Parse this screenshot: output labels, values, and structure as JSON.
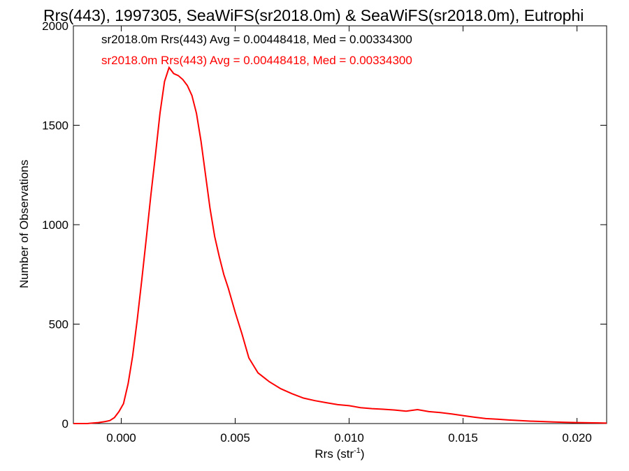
{
  "chart_data": {
    "type": "line",
    "title": "Rrs(443), 1997305, SeaWiFS(sr2018.0m) & SeaWiFS(sr2018.0m), Eutrophi",
    "xlabel": "Rrs (str",
    "xlabel_sup": "-1",
    "xlabel_end": ")",
    "ylabel": "Number of Observations",
    "xlim": [
      -0.0021,
      0.0213
    ],
    "ylim": [
      0,
      2000
    ],
    "x_ticks": [
      0.0,
      0.005,
      0.01,
      0.015,
      0.02
    ],
    "x_tick_labels": [
      "0.000",
      "0.005",
      "0.010",
      "0.015",
      "0.020"
    ],
    "y_ticks": [
      0,
      500,
      1000,
      1500,
      2000
    ],
    "y_tick_labels": [
      "0",
      "500",
      "1000",
      "1500",
      "2000"
    ],
    "grid": false,
    "annotations": [
      {
        "text": "sr2018.0m Rrs(443) Avg = 0.00448418, Med = 0.00334300",
        "color": "#000000"
      },
      {
        "text": "sr2018.0m Rrs(443) Avg = 0.00448418, Med = 0.00334300",
        "color": "#ff0000"
      }
    ],
    "series": [
      {
        "color": "#ff0000",
        "x": [
          -0.0021,
          -0.0015,
          -0.001,
          -0.0007,
          -0.0005,
          -0.0003,
          -0.0001,
          0.0001,
          0.0003,
          0.0005,
          0.0007,
          0.0009,
          0.0011,
          0.0013,
          0.0015,
          0.0017,
          0.0019,
          0.0021,
          0.0023,
          0.0025,
          0.0027,
          0.0029,
          0.0031,
          0.0033,
          0.0035,
          0.0037,
          0.0039,
          0.0041,
          0.0043,
          0.0045,
          0.0047,
          0.005,
          0.0053,
          0.0056,
          0.006,
          0.0065,
          0.007,
          0.0075,
          0.008,
          0.0085,
          0.009,
          0.0095,
          0.01,
          0.0105,
          0.011,
          0.0115,
          0.012,
          0.0125,
          0.013,
          0.0135,
          0.014,
          0.0145,
          0.015,
          0.0155,
          0.016,
          0.0165,
          0.017,
          0.0175,
          0.018,
          0.0185,
          0.019,
          0.0195,
          0.02,
          0.0205,
          0.021,
          0.0213
        ],
        "values": [
          0,
          0,
          5,
          10,
          15,
          30,
          60,
          100,
          200,
          340,
          520,
          720,
          930,
          1150,
          1350,
          1560,
          1720,
          1790,
          1760,
          1750,
          1730,
          1700,
          1650,
          1560,
          1420,
          1250,
          1080,
          940,
          840,
          750,
          680,
          560,
          450,
          330,
          255,
          210,
          175,
          150,
          128,
          115,
          105,
          95,
          90,
          80,
          75,
          72,
          68,
          62,
          70,
          60,
          55,
          48,
          40,
          32,
          25,
          22,
          18,
          15,
          12,
          10,
          8,
          6,
          5,
          4,
          3,
          2
        ]
      }
    ]
  }
}
